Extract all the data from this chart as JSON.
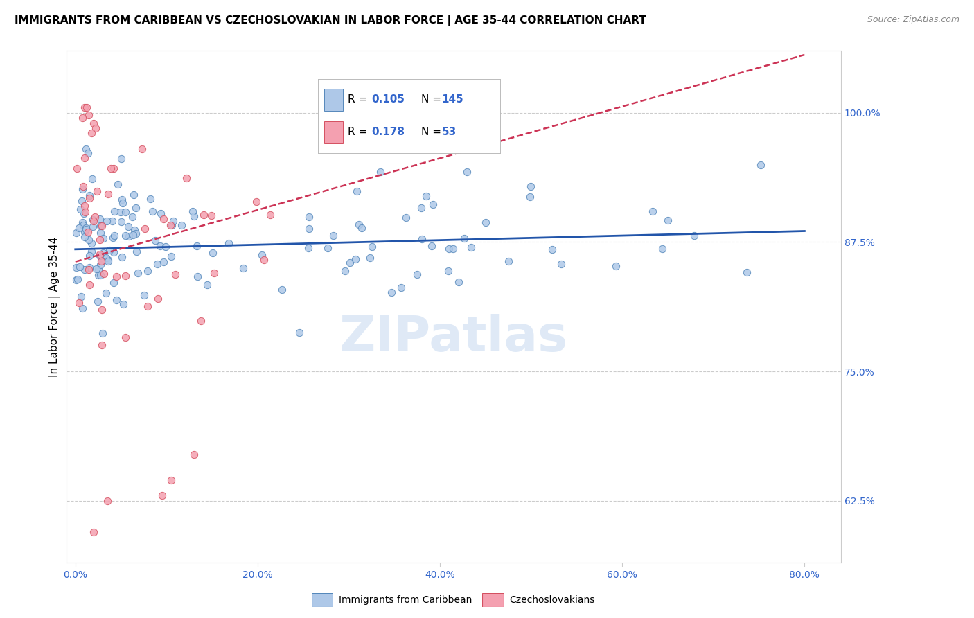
{
  "title": "IMMIGRANTS FROM CARIBBEAN VS CZECHOSLOVAKIAN IN LABOR FORCE | AGE 35-44 CORRELATION CHART",
  "source": "Source: ZipAtlas.com",
  "ylabel": "In Labor Force | Age 35-44",
  "x_tick_labels": [
    "0.0%",
    "20.0%",
    "40.0%",
    "60.0%",
    "80.0%"
  ],
  "x_tick_values": [
    0.0,
    0.2,
    0.4,
    0.6,
    0.8
  ],
  "y_tick_labels": [
    "62.5%",
    "75.0%",
    "87.5%",
    "100.0%"
  ],
  "y_tick_values": [
    0.625,
    0.75,
    0.875,
    1.0
  ],
  "xlim": [
    -0.01,
    0.84
  ],
  "ylim": [
    0.565,
    1.06
  ],
  "blue_marker_face": "#aec8e8",
  "blue_marker_edge": "#5588bb",
  "pink_marker_face": "#f4a0b0",
  "pink_marker_edge": "#d45060",
  "blue_line_color": "#2255aa",
  "pink_line_color": "#cc3355",
  "legend_R_blue": "0.105",
  "legend_N_blue": "145",
  "legend_R_pink": "0.178",
  "legend_N_pink": "53",
  "blue_label": "Immigrants from Caribbean",
  "pink_label": "Czechoslovakians",
  "watermark": "ZIPatlas",
  "title_fontsize": 11,
  "axis_label_fontsize": 11,
  "tick_fontsize": 10,
  "legend_fontsize": 11,
  "value_color": "#3366cc",
  "grid_color": "#cccccc"
}
